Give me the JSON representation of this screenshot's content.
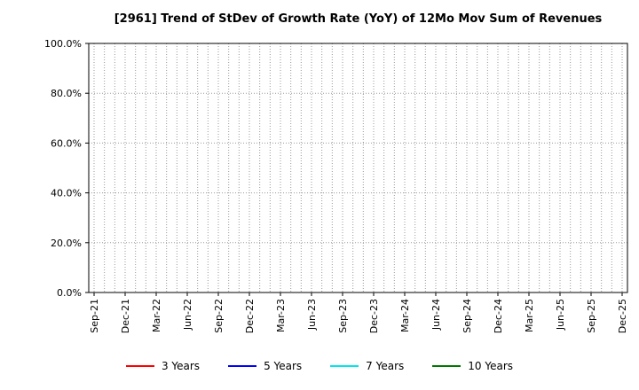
{
  "title": "[2961]  Trend of StDev of Growth Rate (YoY) of 12Mo Mov Sum of Revenues",
  "chart": {
    "background": "#ffffff",
    "grid_color": "#999999",
    "axis_color": "#000000",
    "months_per_label": 3
  },
  "legend": [
    {
      "label": "3 Years",
      "color": "#ff0000"
    },
    {
      "label": "5 Years",
      "color": "#0000ff"
    },
    {
      "label": "7 Years",
      "color": "#00e5ee"
    },
    {
      "label": "10 Years",
      "color": "#007700"
    }
  ],
  "chart_data": {
    "type": "line",
    "title": "[2961]  Trend of StDev of Growth Rate (YoY) of 12Mo Mov Sum of Revenues",
    "x_tick_labels": [
      "Sep-21",
      "Dec-21",
      "Mar-22",
      "Jun-22",
      "Sep-22",
      "Dec-22",
      "Mar-23",
      "Jun-23",
      "Sep-23",
      "Dec-23",
      "Mar-24",
      "Jun-24",
      "Sep-24",
      "Dec-24",
      "Mar-25",
      "Jun-25",
      "Sep-25",
      "Dec-25"
    ],
    "y_tick_labels": [
      "0.0%",
      "20.0%",
      "40.0%",
      "60.0%",
      "80.0%",
      "100.0%"
    ],
    "y_tick_values": [
      0,
      20,
      40,
      60,
      80,
      100
    ],
    "ylim": [
      0,
      100
    ],
    "grid": true,
    "legend_position": "bottom",
    "series": [
      {
        "name": "3 Years",
        "color": "#ff0000",
        "values": []
      },
      {
        "name": "5 Years",
        "color": "#0000ff",
        "values": []
      },
      {
        "name": "7 Years",
        "color": "#00e5ee",
        "values": []
      },
      {
        "name": "10 Years",
        "color": "#007700",
        "values": []
      }
    ]
  }
}
